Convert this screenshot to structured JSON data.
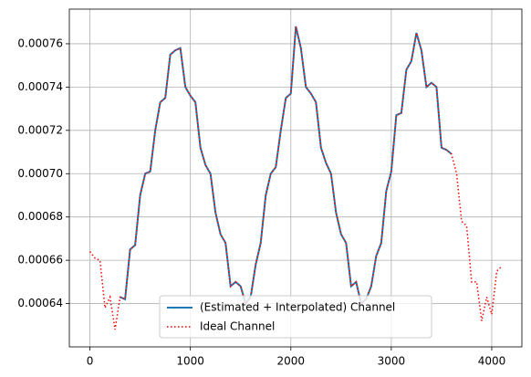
{
  "chart_data": {
    "type": "line",
    "x": [
      0,
      50,
      100,
      150,
      200,
      250,
      300,
      350,
      400,
      450,
      500,
      550,
      600,
      650,
      700,
      750,
      800,
      850,
      900,
      950,
      1000,
      1050,
      1100,
      1150,
      1200,
      1250,
      1300,
      1350,
      1400,
      1450,
      1500,
      1550,
      1600,
      1650,
      1700,
      1750,
      1800,
      1850,
      1900,
      1950,
      2000,
      2050,
      2100,
      2150,
      2200,
      2250,
      2300,
      2350,
      2400,
      2450,
      2500,
      2550,
      2600,
      2650,
      2700,
      2750,
      2800,
      2850,
      2900,
      2950,
      3000,
      3050,
      3100,
      3150,
      3200,
      3250,
      3300,
      3350,
      3400,
      3450,
      3500,
      3550,
      3600,
      3650,
      3700,
      3750,
      3800,
      3850,
      3900,
      3950,
      4000,
      4050,
      4095
    ],
    "series": [
      {
        "name": "(Estimated + Interpolated) Channel",
        "color": "#1f77b4",
        "style": "solid",
        "values": [
          null,
          null,
          null,
          null,
          null,
          null,
          0.000643,
          0.000642,
          0.000665,
          0.000667,
          0.00069,
          0.0007,
          0.000701,
          0.00072,
          0.000733,
          0.000735,
          0.000755,
          0.000757,
          0.000758,
          0.00074,
          0.000736,
          0.000733,
          0.000712,
          0.000704,
          0.0007,
          0.000682,
          0.000672,
          0.000668,
          0.000648,
          0.00065,
          0.000648,
          0.00064,
          0.000643,
          0.000658,
          0.000668,
          0.00069,
          0.0007,
          0.000703,
          0.00072,
          0.000735,
          0.000737,
          0.000768,
          0.000758,
          0.00074,
          0.000737,
          0.000733,
          0.000712,
          0.000705,
          0.0007,
          0.000682,
          0.000672,
          0.000668,
          0.000648,
          0.00065,
          0.00064,
          0.000642,
          0.000648,
          0.000662,
          0.000668,
          0.000692,
          0.000701,
          0.000727,
          0.000728,
          0.000748,
          0.000752,
          0.000765,
          0.000757,
          0.00074,
          0.000742,
          0.00074,
          0.000712,
          0.000711,
          0.000709,
          null,
          null,
          null,
          null,
          null,
          null,
          null,
          null,
          null,
          null
        ]
      },
      {
        "name": "Ideal Channel",
        "color": "#ff0000",
        "style": "dotted",
        "values": [
          0.000664,
          0.000661,
          0.00066,
          0.000638,
          0.000643,
          0.000628,
          0.000643,
          0.000642,
          0.000665,
          0.000667,
          0.00069,
          0.0007,
          0.000701,
          0.00072,
          0.000733,
          0.000735,
          0.000755,
          0.000757,
          0.000758,
          0.00074,
          0.000736,
          0.000733,
          0.000712,
          0.000704,
          0.0007,
          0.000682,
          0.000672,
          0.000668,
          0.000648,
          0.00065,
          0.000648,
          0.00064,
          0.000643,
          0.000658,
          0.000668,
          0.00069,
          0.0007,
          0.000703,
          0.00072,
          0.000735,
          0.000737,
          0.000768,
          0.000758,
          0.00074,
          0.000737,
          0.000733,
          0.000712,
          0.000705,
          0.0007,
          0.000682,
          0.000672,
          0.000668,
          0.000648,
          0.00065,
          0.00064,
          0.000642,
          0.000648,
          0.000662,
          0.000668,
          0.000692,
          0.000701,
          0.000727,
          0.000728,
          0.000748,
          0.000752,
          0.000765,
          0.000757,
          0.00074,
          0.000742,
          0.00074,
          0.000712,
          0.000711,
          0.000709,
          0.0007,
          0.000678,
          0.000676,
          0.00065,
          0.00065,
          0.000632,
          0.000643,
          0.000635,
          0.000655,
          0.000657
        ]
      }
    ],
    "xlim": [
      -205,
      4300
    ],
    "xticks": [
      0,
      1000,
      2000,
      3000,
      4000
    ],
    "ylim": [
      0.00062,
      0.000776
    ],
    "yticks": [
      0.00064,
      0.00066,
      0.00068,
      {
        "value": 0.0007,
        "label": "0.00070"
      },
      0.00072,
      0.00074,
      0.00076
    ],
    "grid": true,
    "legend": "lower center"
  }
}
